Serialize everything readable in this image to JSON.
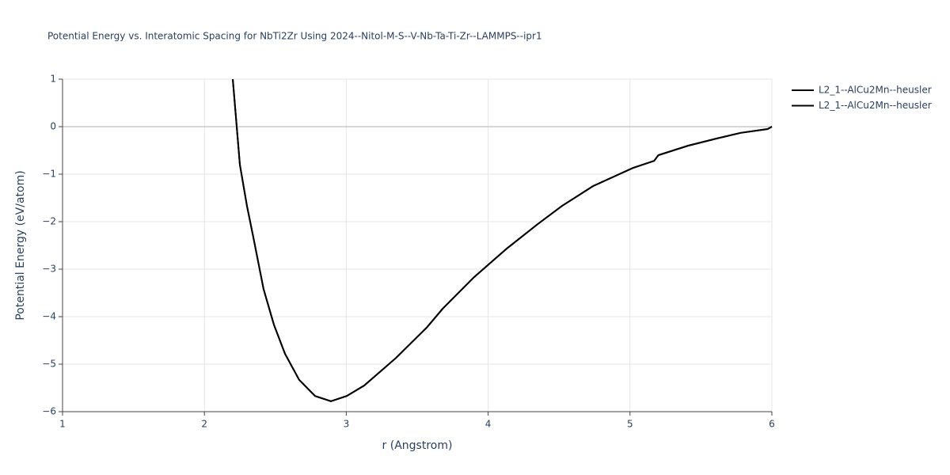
{
  "chart_data": {
    "type": "line",
    "title": "Potential Energy vs. Interatomic Spacing for NbTi2Zr Using 2024--Nitol-M-S--V-Nb-Ta-Ti-Zr--LAMMPS--ipr1",
    "xlabel": "r (Angstrom)",
    "ylabel": "Potential Energy (eV/atom)",
    "x": [
      2.2,
      2.25,
      2.3,
      2.345,
      2.417,
      2.49,
      2.568,
      2.668,
      2.78,
      2.892,
      3.003,
      3.126,
      3.35,
      3.57,
      3.68,
      3.9,
      4.13,
      4.35,
      4.52,
      4.74,
      5.02,
      5.17,
      5.2,
      5.41,
      5.61,
      5.78,
      5.97,
      6.0
    ],
    "series": [
      {
        "name": "L2_1--AlCu2Mn--heusler",
        "color": "#000000",
        "values": [
          1,
          -0.8,
          -1.67,
          -2.33,
          -3.42,
          -4.17,
          -4.78,
          -5.33,
          -5.67,
          -5.78,
          -5.67,
          -5.45,
          -4.87,
          -4.22,
          -3.83,
          -3.17,
          -2.57,
          -2.05,
          -1.67,
          -1.25,
          -0.87,
          -0.72,
          -0.6,
          -0.4,
          -0.25,
          -0.13,
          -0.05,
          0
        ]
      },
      {
        "name": "L2_1--AlCu2Mn--heusler",
        "color": "#000000",
        "values": [
          1,
          -0.8,
          -1.67,
          -2.33,
          -3.42,
          -4.17,
          -4.78,
          -5.33,
          -5.67,
          -5.78,
          -5.67,
          -5.45,
          -4.87,
          -4.22,
          -3.83,
          -3.17,
          -2.57,
          -2.05,
          -1.67,
          -1.25,
          -0.87,
          -0.72,
          -0.6,
          -0.4,
          -0.25,
          -0.13,
          -0.05,
          0
        ]
      }
    ],
    "xlim": [
      1,
      6
    ],
    "xticks": [
      1,
      2,
      3,
      4,
      5,
      6
    ],
    "ylim": [
      -6,
      1
    ],
    "yticks": [
      {
        "value": -6,
        "label": "−6"
      },
      {
        "value": -5,
        "label": "−5"
      },
      {
        "value": -4,
        "label": "−4"
      },
      {
        "value": -3,
        "label": "−3"
      },
      {
        "value": -2,
        "label": "−2"
      },
      {
        "value": -1,
        "label": "−1"
      },
      0,
      1
    ],
    "grid": true,
    "legend": "right"
  }
}
